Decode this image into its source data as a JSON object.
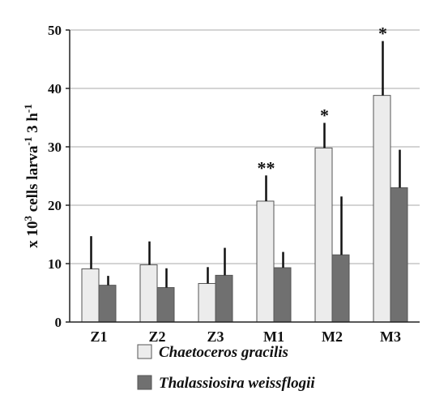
{
  "chart_data": {
    "type": "bar",
    "ylabel_parts": [
      "x 10",
      "3",
      " cells larva",
      "-1",
      " 3 h",
      "-1"
    ],
    "ylim": [
      0,
      50
    ],
    "yticks": [
      "0",
      "10",
      "20",
      "30",
      "40",
      "50"
    ],
    "grid": true,
    "legend_position": "bottom",
    "categories": [
      "Z1",
      "Z2",
      "Z3",
      "M1",
      "M2",
      "M3"
    ],
    "series": [
      {
        "name": "Chaetoceros gracilis",
        "color": "#ececec",
        "values": [
          9.1,
          9.8,
          6.6,
          20.7,
          29.8,
          38.8
        ],
        "error": [
          5.6,
          4.0,
          2.8,
          4.4,
          4.3,
          9.3
        ]
      },
      {
        "name": "Thalassiosira weissflogii",
        "color": "#707070",
        "values": [
          6.3,
          5.9,
          8.0,
          9.3,
          11.5,
          23.0
        ],
        "error": [
          1.6,
          3.3,
          4.7,
          2.7,
          10.0,
          6.5
        ]
      }
    ],
    "annotations": [
      {
        "category": "M1",
        "text": "**"
      },
      {
        "category": "M2",
        "text": "*"
      },
      {
        "category": "M3",
        "text": "*"
      }
    ]
  }
}
